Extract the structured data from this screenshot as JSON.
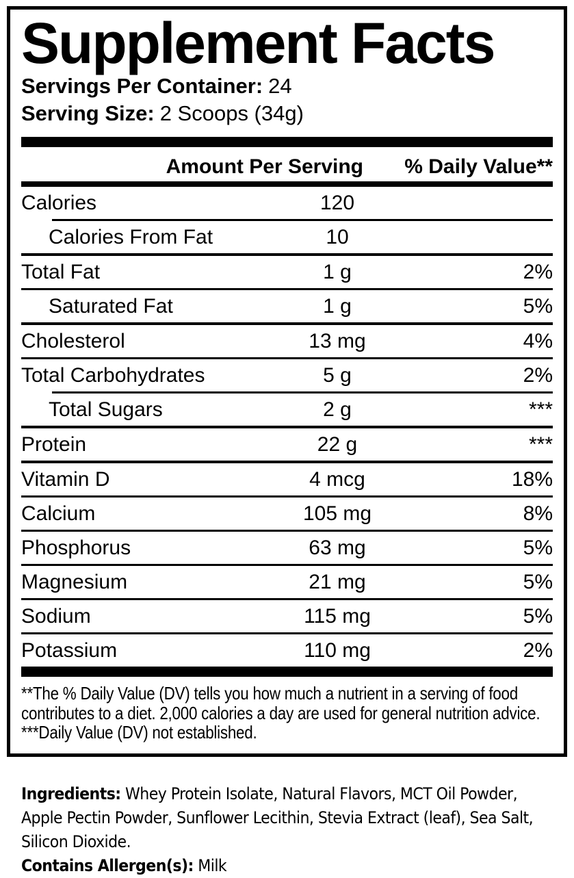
{
  "title": "Supplement Facts",
  "serving_info": {
    "servings_per_container_label": "Servings Per Container:",
    "servings_per_container_value": "24",
    "serving_size_label": "Serving Size:",
    "serving_size_value": "2 Scoops (34g)"
  },
  "table": {
    "header": {
      "amount": "Amount Per Serving",
      "daily_value": "% Daily Value**"
    },
    "rows": [
      {
        "label": "Calories",
        "amount": "120",
        "dv": "",
        "indent": false,
        "sep": "indent-thin"
      },
      {
        "label": "Calories From Fat",
        "amount": "10",
        "dv": "",
        "indent": true,
        "sep": "medium"
      },
      {
        "label": "Total Fat",
        "amount": "1 g",
        "dv": "2%",
        "indent": false,
        "sep": ""
      },
      {
        "label": "Saturated Fat",
        "amount": "1 g",
        "dv": "5%",
        "indent": true,
        "sep": "medium"
      },
      {
        "label": "Cholesterol",
        "amount": "13 mg",
        "dv": "4%",
        "indent": false,
        "sep": ""
      },
      {
        "label": "Total Carbohydrates",
        "amount": "5 g",
        "dv": "2%",
        "indent": false,
        "sep": "indent-thin"
      },
      {
        "label": "Total Sugars",
        "amount": "2 g",
        "dv": "***",
        "indent": true,
        "sep": "medium"
      },
      {
        "label": "Protein",
        "amount": "22 g",
        "dv": "***",
        "indent": false,
        "sep": "medium"
      },
      {
        "label": "Vitamin D",
        "amount": "4 mcg",
        "dv": "18%",
        "indent": false,
        "sep": ""
      },
      {
        "label": "Calcium",
        "amount": "105 mg",
        "dv": "8%",
        "indent": false,
        "sep": ""
      },
      {
        "label": "Phosphorus",
        "amount": "63 mg",
        "dv": "5%",
        "indent": false,
        "sep": ""
      },
      {
        "label": "Magnesium",
        "amount": "21 mg",
        "dv": "5%",
        "indent": false,
        "sep": ""
      },
      {
        "label": "Sodium",
        "amount": "115 mg",
        "dv": "5%",
        "indent": false,
        "sep": ""
      },
      {
        "label": "Potassium",
        "amount": "110 mg",
        "dv": "2%",
        "indent": false,
        "sep": ""
      }
    ]
  },
  "footnotes": {
    "daily_value_note": "**The % Daily Value (DV) tells you how much a nutrient in a serving of food contributes to a diet. 2,000 calories a day are used for general nutrition advice.",
    "not_established": "***Daily Value (DV) not established."
  },
  "ingredients": {
    "label": "Ingredients:",
    "text": "Whey Protein Isolate, Natural Flavors, MCT Oil Powder, Apple Pectin Powder, Sunflower Lecithin, Stevia Extract (leaf), Sea Salt, Silicon Dioxide."
  },
  "allergen": {
    "label": "Contains Allergen(s):",
    "value": "Milk"
  },
  "colors": {
    "text": "#000000",
    "background": "#ffffff",
    "rule": "#000000"
  }
}
